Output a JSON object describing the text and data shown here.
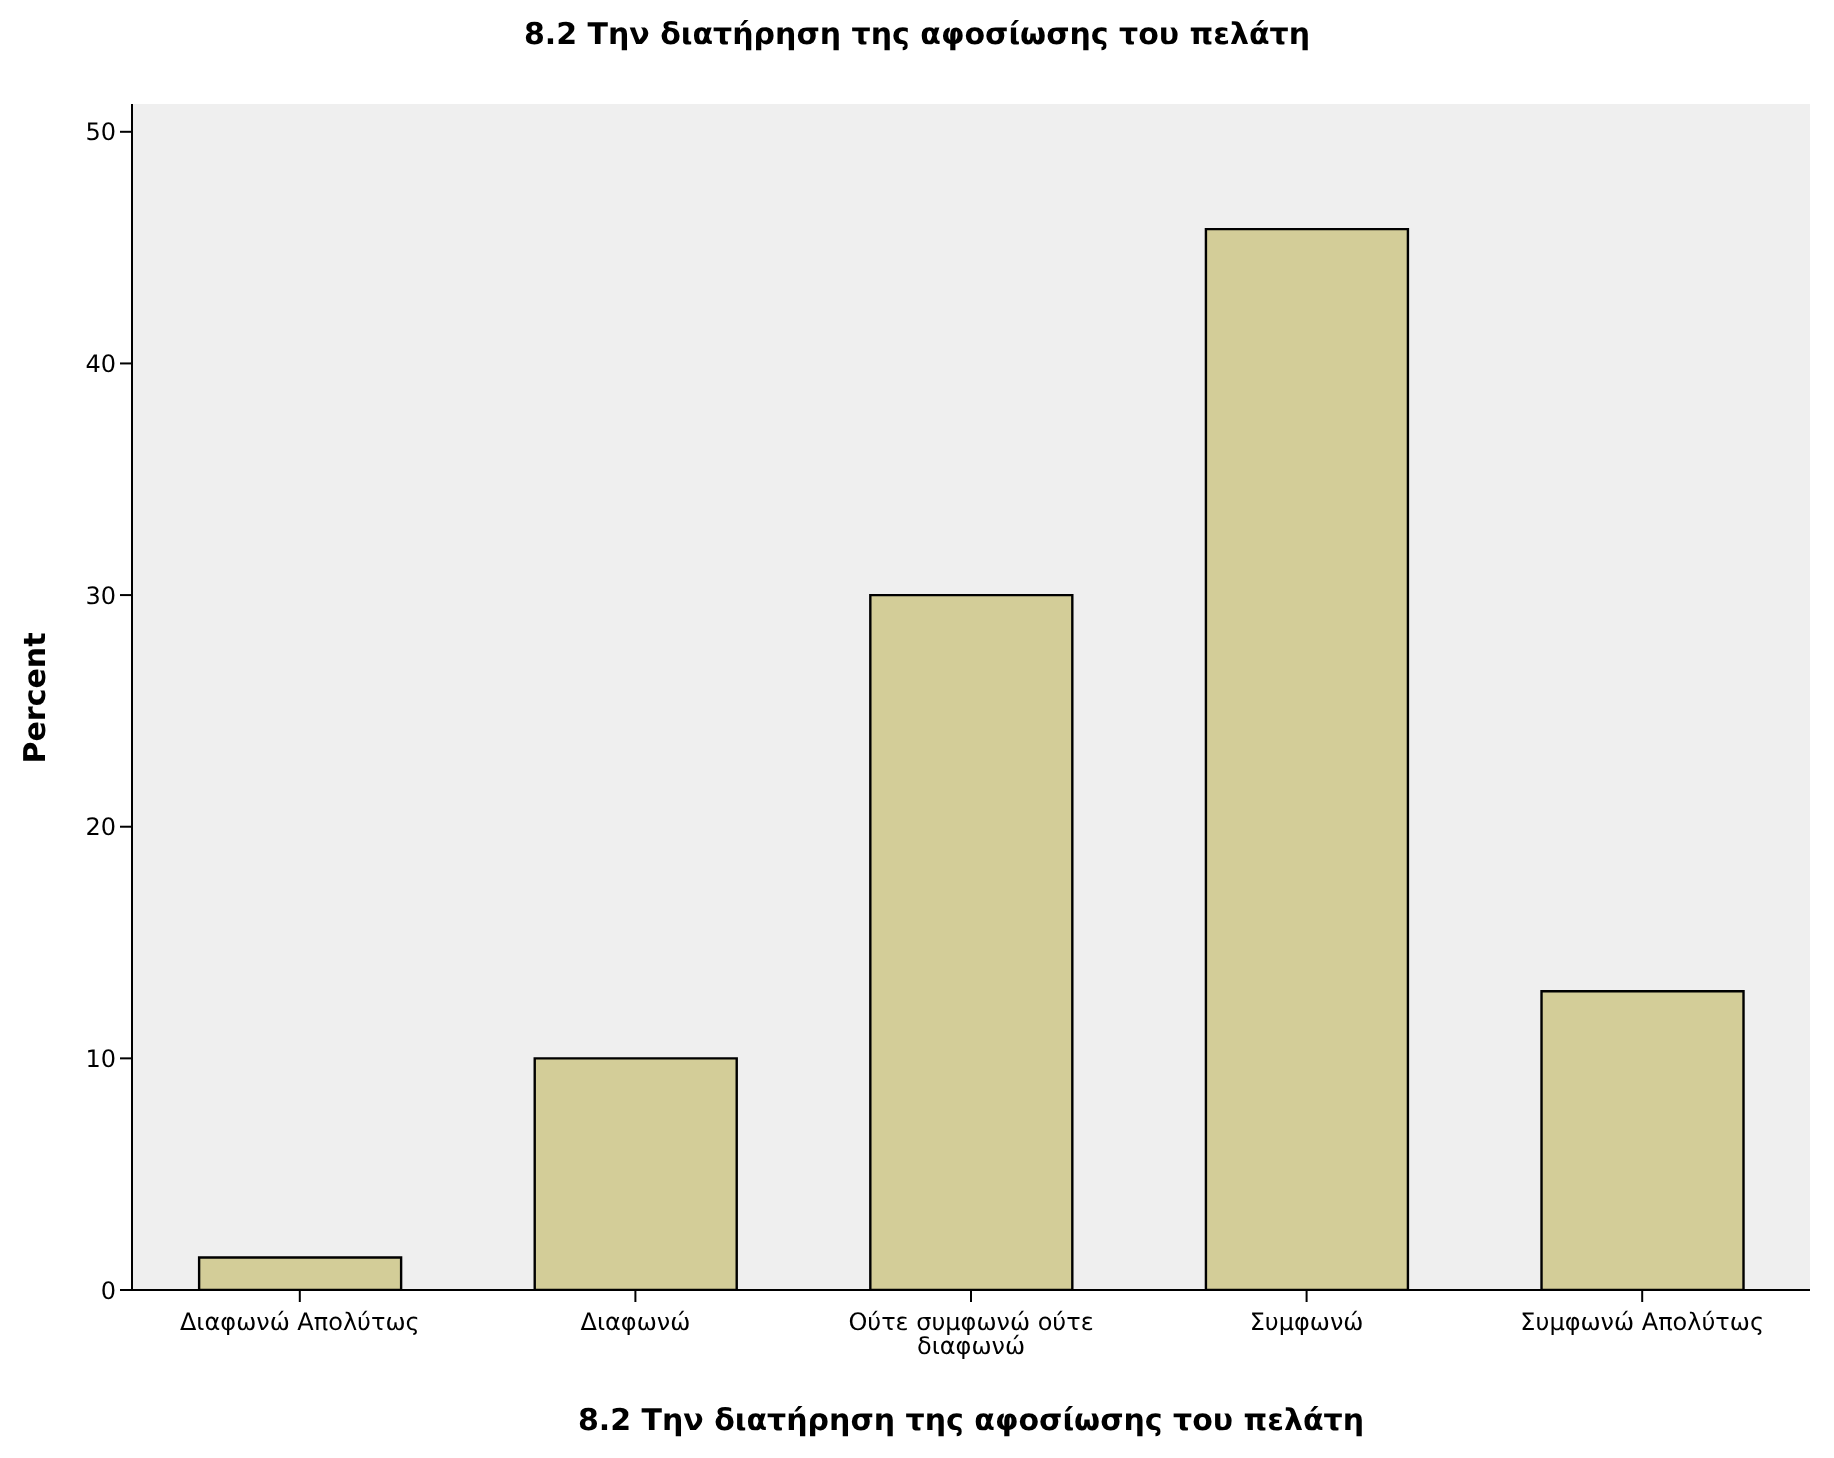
{
  "chart_data": {
    "type": "bar",
    "title": "8.2 Την διατήρηση της αφοσίωσης του πελάτη",
    "xlabel": "8.2 Την διατήρηση της αφοσίωσης του πελάτη",
    "ylabel": "Percent",
    "categories": [
      "Διαφωνώ Απολύτως",
      "Διαφωνώ",
      "Ούτε συμφωνώ ούτε διαφωνώ",
      "Συμφωνώ",
      "Συμφωνώ Απολύτως"
    ],
    "values": [
      1.4,
      10,
      30,
      45.8,
      12.9
    ],
    "color": "#d3cd98",
    "ylim": [
      0,
      51.2
    ],
    "yticks": [
      0,
      10,
      20,
      30,
      40,
      50
    ],
    "grid": false,
    "legend": false
  }
}
